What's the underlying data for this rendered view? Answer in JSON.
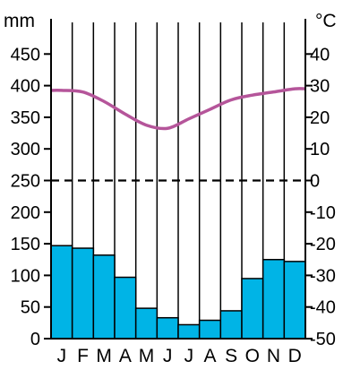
{
  "chart_data": {
    "type": "climate_diagram",
    "categories": [
      "J",
      "F",
      "M",
      "A",
      "M",
      "J",
      "J",
      "A",
      "S",
      "O",
      "N",
      "D"
    ],
    "left_axis": {
      "label": "mm",
      "ticks": [
        0,
        50,
        100,
        150,
        200,
        250,
        300,
        350,
        400,
        450
      ],
      "range": [
        0,
        500
      ]
    },
    "right_axis": {
      "label": "°C",
      "ticks": [
        -50,
        -40,
        -30,
        -20,
        -10,
        0,
        10,
        20,
        30,
        40
      ],
      "range": [
        -50,
        50
      ]
    },
    "series": [
      {
        "type": "bar",
        "axis": "left",
        "color": "#00b4e6",
        "values": [
          147,
          143,
          132,
          97,
          48,
          33,
          22,
          29,
          44,
          95,
          125,
          122
        ]
      },
      {
        "type": "line",
        "axis": "right",
        "color": "#b5559a",
        "values": [
          28.5,
          28,
          25,
          21,
          17.5,
          16.5,
          19.5,
          22.5,
          25.5,
          27,
          28,
          29
        ]
      }
    ],
    "reference_line": {
      "axis": "right",
      "value": 0,
      "style": "dashed"
    },
    "grid": true
  }
}
